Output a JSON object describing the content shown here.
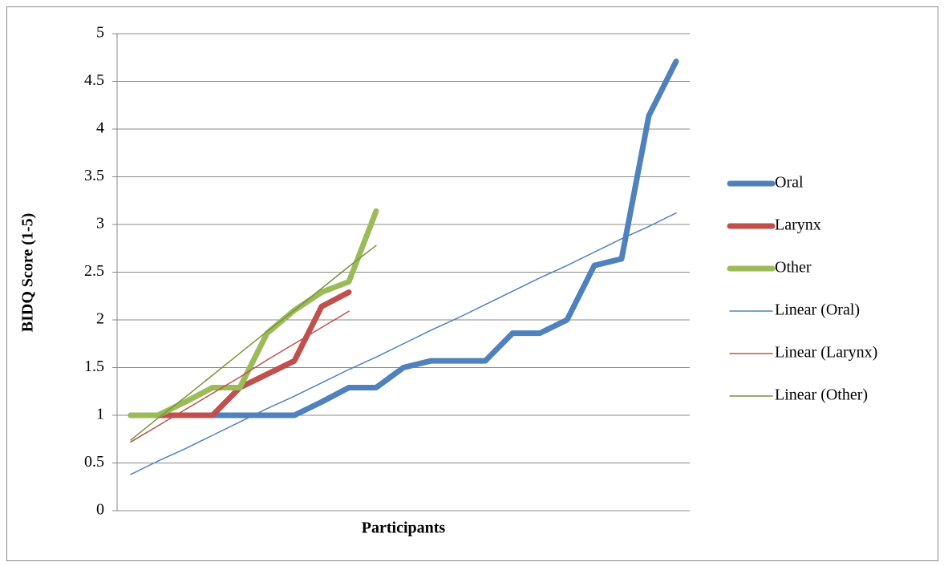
{
  "chart_data": {
    "type": "line",
    "y_label": "BIDQ Score (1-5)",
    "x_label": "Participants",
    "categories": [
      null,
      null,
      null,
      null,
      null,
      null,
      null,
      null,
      null,
      null,
      null,
      null,
      null,
      null,
      null,
      null,
      null,
      null,
      null,
      null,
      null
    ],
    "ylim": [
      0,
      5
    ],
    "yticks": [
      0,
      0.5,
      1,
      1.5,
      2,
      2.5,
      3,
      3.5,
      4,
      4.5,
      5
    ],
    "grid": true,
    "legend": "right",
    "series": [
      {
        "name": "Oral",
        "color": "#4f81bd",
        "line_width": 7,
        "values": [
          1,
          1,
          1,
          1,
          1,
          1,
          1,
          1.14,
          1.29,
          1.29,
          1.5,
          1.57,
          1.57,
          1.57,
          1.86,
          1.86,
          2.0,
          2.57,
          2.64,
          4.14,
          4.71
        ]
      },
      {
        "name": "Larynx",
        "color": "#c0504d",
        "line_width": 7,
        "values": [
          1,
          1,
          1,
          1,
          1.29,
          1.43,
          1.57,
          2.14,
          2.29,
          null,
          null,
          null,
          null,
          null,
          null,
          null,
          null,
          null,
          null,
          null,
          null
        ]
      },
      {
        "name": "Other",
        "color": "#9bbb59",
        "line_width": 7,
        "values": [
          1,
          1,
          1.14,
          1.29,
          1.29,
          1.86,
          2.1,
          2.29,
          2.4,
          3.14,
          null,
          null,
          null,
          null,
          null,
          null,
          null,
          null,
          null,
          null,
          null
        ]
      },
      {
        "name": "Linear (Oral)",
        "color": "#4f81bd",
        "line_width": 1.5,
        "values": [
          0.38,
          0.52,
          0.65,
          0.79,
          0.93,
          1.07,
          1.2,
          1.34,
          1.48,
          1.61,
          1.75,
          1.89,
          2.02,
          2.16,
          2.3,
          2.44,
          2.57,
          2.71,
          2.85,
          2.98,
          3.12
        ]
      },
      {
        "name": "Linear (Larynx)",
        "color": "#c0504d",
        "line_width": 1.5,
        "values": [
          0.72,
          0.89,
          1.06,
          1.23,
          1.4,
          1.58,
          1.75,
          1.92,
          2.09,
          null,
          null,
          null,
          null,
          null,
          null,
          null,
          null,
          null,
          null,
          null,
          null
        ]
      },
      {
        "name": "Linear (Other)",
        "color": "#77933c",
        "line_width": 1.5,
        "values": [
          0.74,
          0.97,
          1.19,
          1.42,
          1.65,
          1.88,
          2.1,
          2.33,
          2.56,
          2.78,
          null,
          null,
          null,
          null,
          null,
          null,
          null,
          null,
          null,
          null,
          null
        ]
      }
    ]
  }
}
